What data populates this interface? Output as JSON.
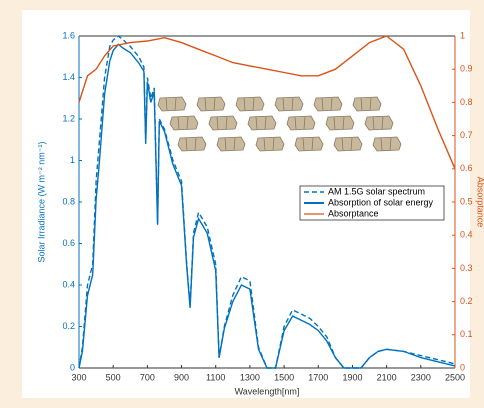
{
  "chart_data": {
    "type": "line",
    "xlabel": "Wavelength[nm]",
    "ylabel": "Solar Irradiance (W m⁻² nm⁻¹)",
    "y2label": "Absorptance",
    "xlim": [
      300,
      2500
    ],
    "xticks": [
      300,
      500,
      700,
      900,
      1100,
      1300,
      1500,
      1700,
      1900,
      2100,
      2300,
      2500
    ],
    "ylim": [
      0,
      1.6
    ],
    "yticks": [
      0,
      0.2,
      0.4,
      0.6,
      0.8,
      1,
      1.2,
      1.4,
      1.6
    ],
    "y2lim": [
      0,
      1
    ],
    "y2ticks": [
      0,
      0.1,
      0.2,
      0.3,
      0.4,
      0.5,
      0.6,
      0.7,
      0.8,
      0.9,
      1
    ],
    "x": [
      300,
      320,
      350,
      380,
      400,
      420,
      450,
      480,
      500,
      530,
      560,
      600,
      650,
      680,
      690,
      700,
      720,
      740,
      760,
      770,
      800,
      850,
      900,
      930,
      950,
      970,
      1000,
      1050,
      1100,
      1120,
      1150,
      1200,
      1250,
      1300,
      1350,
      1400,
      1450,
      1500,
      1550,
      1600,
      1650,
      1700,
      1750,
      1800,
      1850,
      1950,
      2000,
      2050,
      2100,
      2200,
      2300,
      2400,
      2500
    ],
    "series": [
      {
        "name": "AM 1.5G solar spectrum",
        "color": "#0072bd",
        "dashed": true,
        "values": [
          0,
          0.1,
          0.4,
          0.5,
          0.9,
          1.1,
          1.4,
          1.55,
          1.58,
          1.6,
          1.58,
          1.55,
          1.5,
          1.45,
          1.1,
          1.4,
          1.3,
          1.35,
          0.7,
          1.2,
          1.15,
          1.0,
          0.9,
          0.5,
          0.3,
          0.65,
          0.75,
          0.68,
          0.5,
          0.05,
          0.2,
          0.35,
          0.44,
          0.42,
          0.1,
          0,
          0,
          0.2,
          0.28,
          0.26,
          0.24,
          0.2,
          0.15,
          0.05,
          0,
          0,
          0.05,
          0.08,
          0.09,
          0.08,
          0.06,
          0.04,
          0.02
        ]
      },
      {
        "name": "Absorption of solar energy",
        "color": "#0072bd",
        "dashed": false,
        "values": [
          0,
          0.08,
          0.35,
          0.45,
          0.81,
          1.0,
          1.32,
          1.48,
          1.53,
          1.56,
          1.54,
          1.52,
          1.47,
          1.43,
          1.08,
          1.38,
          1.28,
          1.33,
          0.69,
          1.19,
          1.14,
          0.98,
          0.88,
          0.49,
          0.29,
          0.63,
          0.72,
          0.65,
          0.47,
          0.05,
          0.19,
          0.32,
          0.4,
          0.38,
          0.09,
          0,
          0,
          0.18,
          0.25,
          0.23,
          0.21,
          0.18,
          0.13,
          0.05,
          0,
          0,
          0.05,
          0.08,
          0.09,
          0.08,
          0.05,
          0.03,
          0.01
        ]
      },
      {
        "name": "Absorptance",
        "color": "#d95319",
        "dashed": false,
        "axis": "y2",
        "x": [
          300,
          350,
          400,
          450,
          500,
          600,
          700,
          800,
          900,
          1000,
          1100,
          1200,
          1300,
          1400,
          1500,
          1600,
          1700,
          1800,
          1900,
          2000,
          2100,
          2200,
          2300,
          2400,
          2500
        ],
        "values": [
          0.8,
          0.88,
          0.9,
          0.94,
          0.97,
          0.98,
          0.985,
          0.995,
          0.98,
          0.96,
          0.94,
          0.92,
          0.91,
          0.9,
          0.89,
          0.88,
          0.88,
          0.9,
          0.94,
          0.98,
          1.0,
          0.96,
          0.85,
          0.72,
          0.6
        ]
      }
    ]
  }
}
